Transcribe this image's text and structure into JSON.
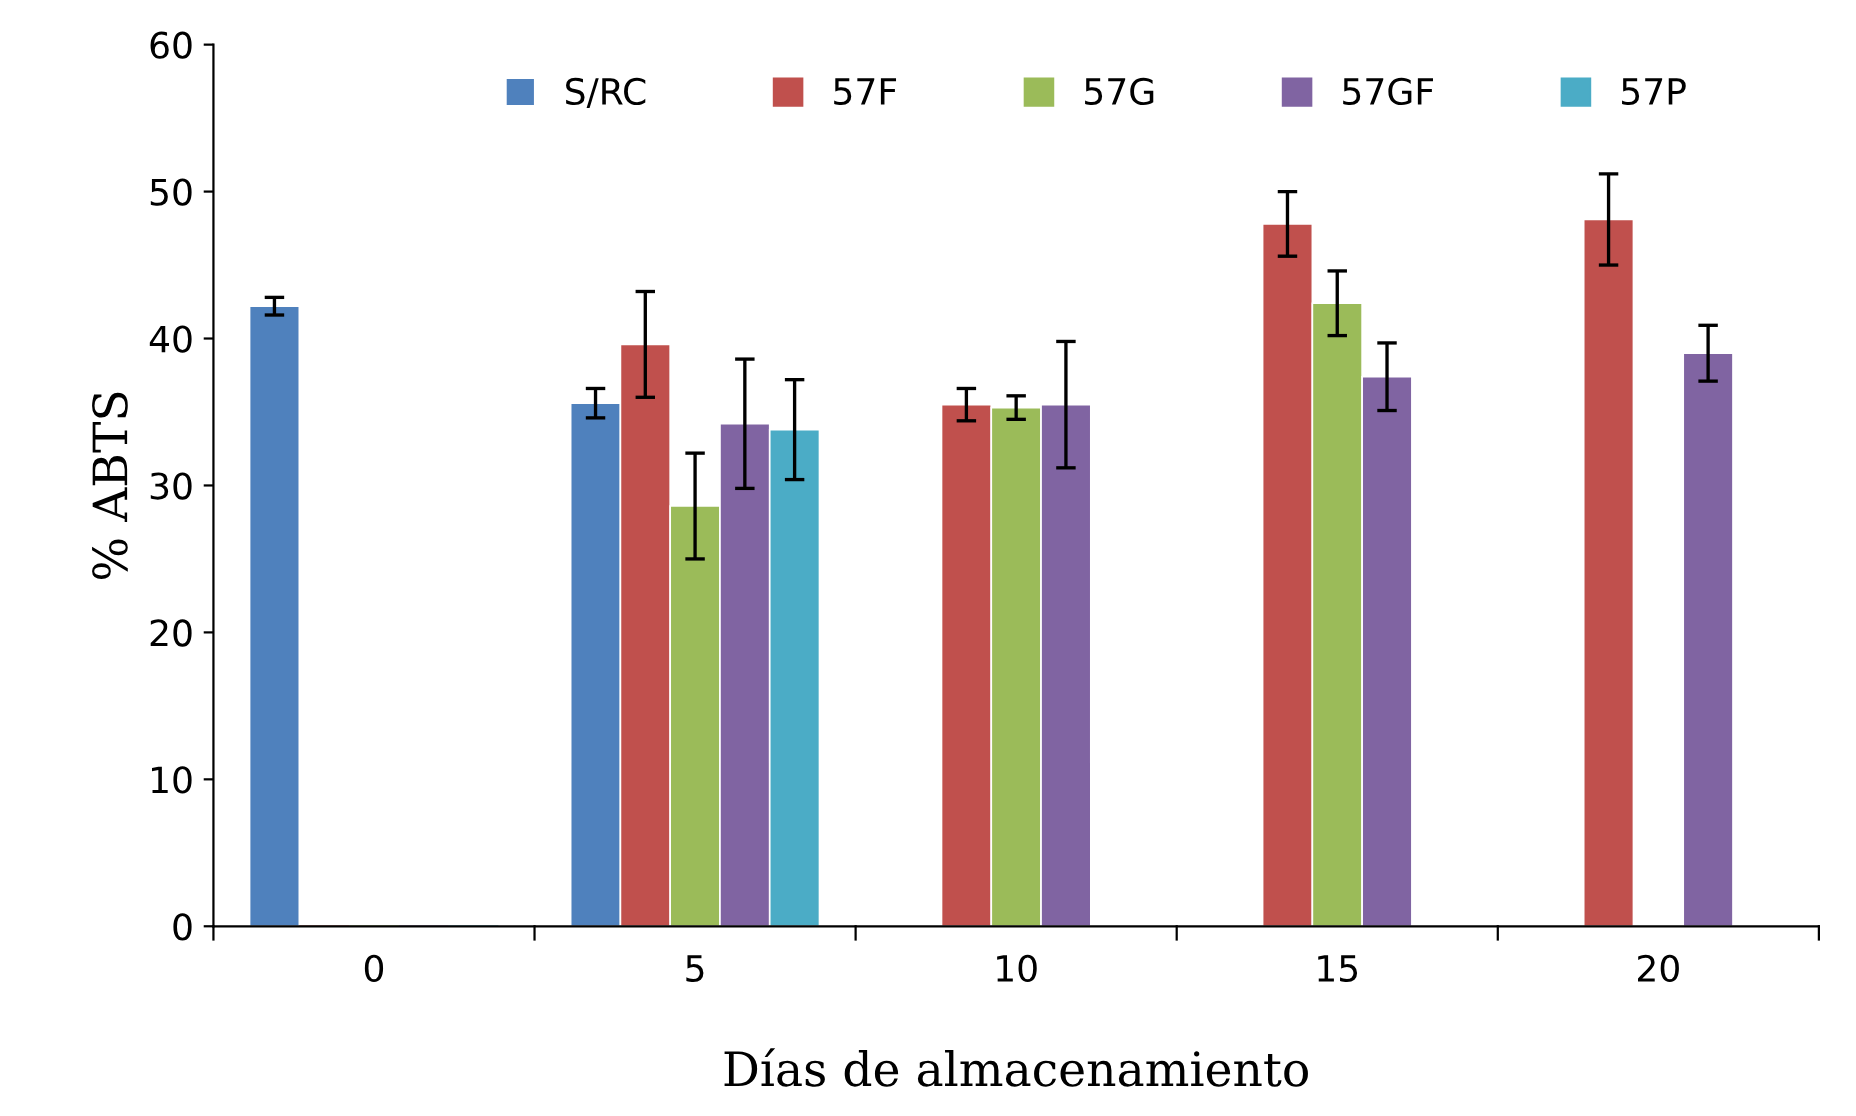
{
  "chart_data": {
    "type": "bar",
    "xlabel": "Días de almacenamiento",
    "ylabel": "% ABTS",
    "categories": [
      "0",
      "5",
      "10",
      "15",
      "20"
    ],
    "series": [
      {
        "name": "S/RC",
        "color": "#4f81bd",
        "values": [
          42.2,
          35.6,
          null,
          null,
          null
        ],
        "errors": [
          0.6,
          1.0,
          null,
          null,
          null
        ]
      },
      {
        "name": "57F",
        "color": "#c0504d",
        "values": [
          0,
          39.6,
          35.5,
          47.8,
          48.1
        ],
        "errors": [
          null,
          3.6,
          1.1,
          2.2,
          3.1
        ]
      },
      {
        "name": "57G",
        "color": "#9bbb59",
        "values": [
          0,
          28.6,
          35.3,
          42.4,
          null
        ],
        "errors": [
          null,
          3.6,
          0.8,
          2.2,
          null
        ]
      },
      {
        "name": "57GF",
        "color": "#8064a2",
        "values": [
          0,
          34.2,
          35.5,
          37.4,
          39.0
        ],
        "errors": [
          null,
          4.4,
          4.3,
          2.3,
          1.9
        ]
      },
      {
        "name": "57P",
        "color": "#4bacc6",
        "values": [
          0,
          33.8,
          null,
          null,
          null
        ],
        "errors": [
          null,
          3.4,
          null,
          null,
          null
        ]
      }
    ],
    "ylim": [
      0,
      60
    ],
    "yticks": [
      0,
      10,
      20,
      30,
      40,
      50,
      60
    ],
    "grid": false,
    "legend": "top"
  }
}
